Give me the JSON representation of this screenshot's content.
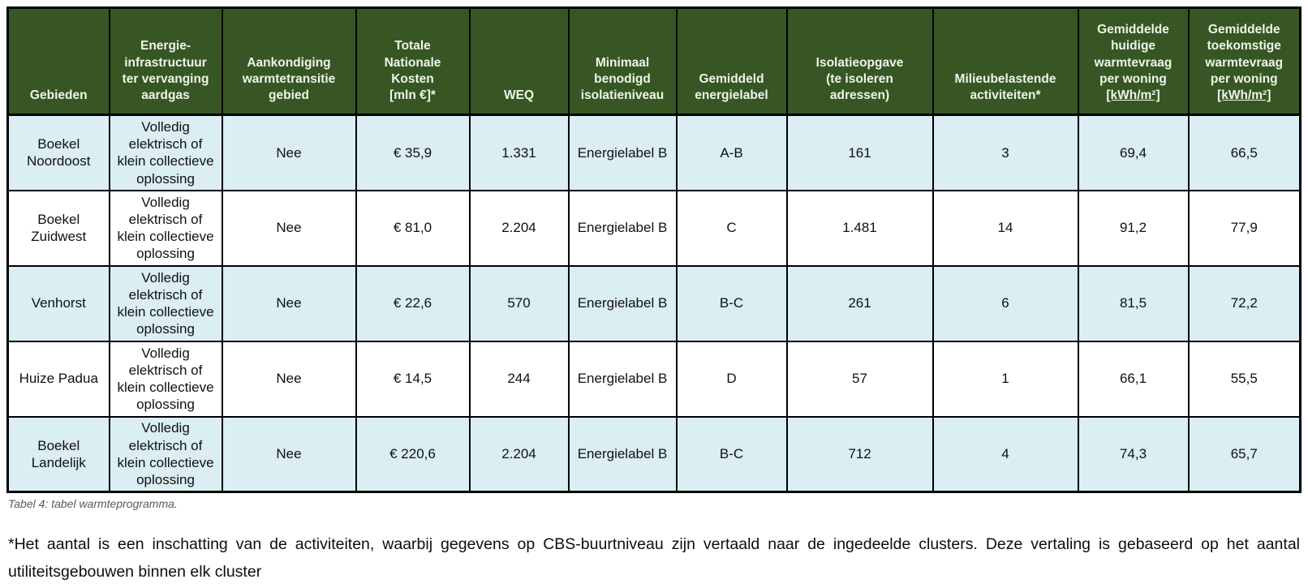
{
  "colors": {
    "header_bg": "#375623",
    "header_text": "#EFF4EB",
    "alt_row_bg": "#DAEEF3",
    "border": "#000000",
    "caption_text": "#595959"
  },
  "table": {
    "columns": [
      {
        "label": "Gebieden"
      },
      {
        "label": "Energie-\ninfrastructuur\nter vervanging\naardgas"
      },
      {
        "label": "Aankondiging\nwarmtetransitie\ngebied"
      },
      {
        "label": "Totale\nNationale\nKosten\n[mln €]*"
      },
      {
        "label": "WEQ"
      },
      {
        "label": "Minimaal\nbenodigd\nisolatieniveau"
      },
      {
        "label": "Gemiddeld\nenergielabel"
      },
      {
        "label": "Isolatieopgave\n(te isoleren\nadressen)"
      },
      {
        "label": "Milieubelastende\nactiviteiten*"
      },
      {
        "label": "Gemiddelde\nhuidige\nwarmtevraag\nper woning",
        "unit": "[kWh/m²]"
      },
      {
        "label": "Gemiddelde\ntoekomstige\nwarmtevraag\nper woning",
        "unit": "[kWh/m²]"
      }
    ],
    "rows": [
      {
        "cells": [
          "Boekel Noordoost",
          "Volledig\nelektrisch of\nklein collectieve\noplossing",
          "Nee",
          "€ 35,9",
          "1.331",
          "Energielabel B",
          "A-B",
          "161",
          "3",
          "69,4",
          "66,5"
        ]
      },
      {
        "cells": [
          "Boekel Zuidwest",
          "Volledig\nelektrisch of\nklein collectieve\noplossing",
          "Nee",
          "€ 81,0",
          "2.204",
          "Energielabel B",
          "C",
          "1.481",
          "14",
          "91,2",
          "77,9"
        ]
      },
      {
        "cells": [
          "Venhorst",
          "Volledig\nelektrisch of\nklein collectieve\noplossing",
          "Nee",
          "€ 22,6",
          "570",
          "Energielabel B",
          "B-C",
          "261",
          "6",
          "81,5",
          "72,2"
        ]
      },
      {
        "cells": [
          "Huize Padua",
          "Volledig\nelektrisch of\nklein collectieve\noplossing",
          "Nee",
          "€ 14,5",
          "244",
          "Energielabel B",
          "D",
          "57",
          "1",
          "66,1",
          "55,5"
        ]
      },
      {
        "cells": [
          "Boekel Landelijk",
          "Volledig\nelektrisch of\nklein collectieve\noplossing",
          "Nee",
          "€ 220,6",
          "2.204",
          "Energielabel B",
          "B-C",
          "712",
          "4",
          "74,3",
          "65,7"
        ]
      }
    ],
    "caption": "Tabel 4: tabel warmteprogramma."
  },
  "footnote": "*Het aantal is een inschatting van de activiteiten, waarbij gegevens op CBS-buurtniveau zijn vertaald naar de ingedeelde clusters. Deze vertaling is gebaseerd op het aantal utiliteitsgebouwen binnen elk cluster"
}
